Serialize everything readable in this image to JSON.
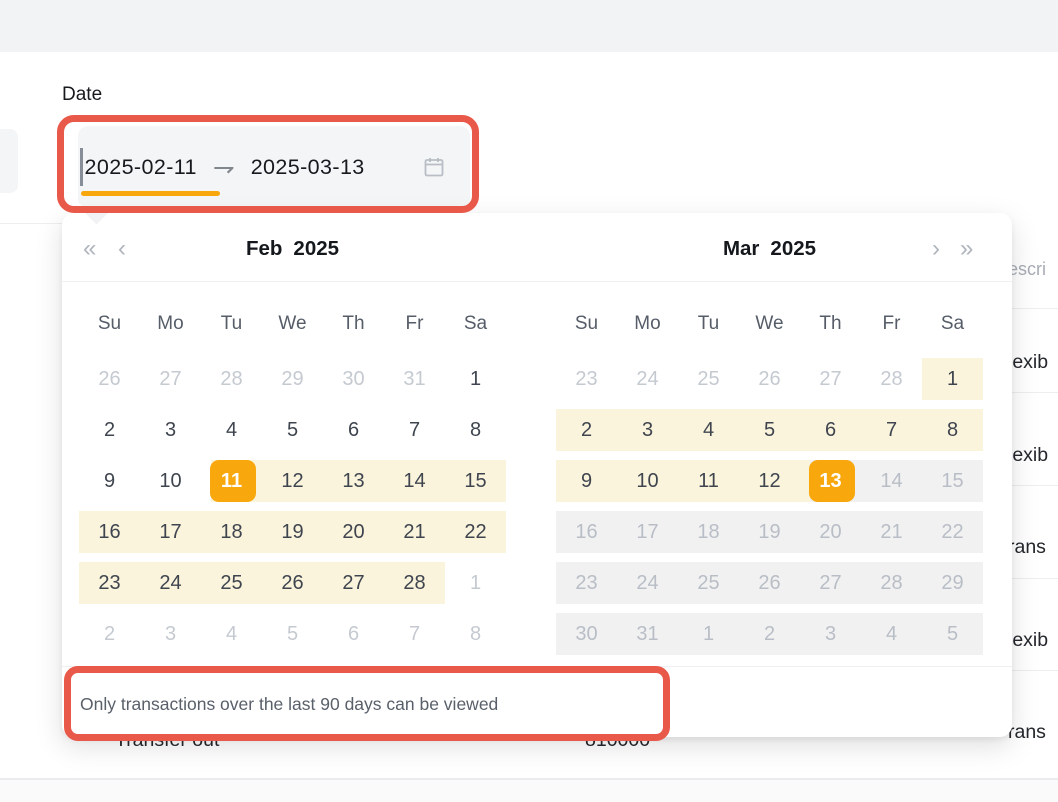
{
  "date_filter": {
    "label": "Date",
    "start_value": "2025-02-11",
    "separator_icon": "⇁",
    "end_value": "2025-03-13",
    "calendar_icon": "calendar"
  },
  "calendar": {
    "nav": {
      "prev_year": "«",
      "prev_month": "‹",
      "next_month": "›",
      "next_year": "»"
    },
    "weekdays": [
      "Su",
      "Mo",
      "Tu",
      "We",
      "Th",
      "Fr",
      "Sa"
    ],
    "panels": [
      {
        "month": "Feb",
        "year": "2025",
        "rows": [
          [
            {
              "d": "26",
              "t": "out"
            },
            {
              "d": "27",
              "t": "out"
            },
            {
              "d": "28",
              "t": "out"
            },
            {
              "d": "29",
              "t": "out"
            },
            {
              "d": "30",
              "t": "out"
            },
            {
              "d": "31",
              "t": "out"
            },
            {
              "d": "1",
              "t": "day"
            }
          ],
          [
            {
              "d": "2",
              "t": "day"
            },
            {
              "d": "3",
              "t": "day"
            },
            {
              "d": "4",
              "t": "day"
            },
            {
              "d": "5",
              "t": "day"
            },
            {
              "d": "6",
              "t": "day"
            },
            {
              "d": "7",
              "t": "day"
            },
            {
              "d": "8",
              "t": "day"
            }
          ],
          [
            {
              "d": "9",
              "t": "day"
            },
            {
              "d": "10",
              "t": "day"
            },
            {
              "d": "11",
              "t": "start"
            },
            {
              "d": "12",
              "t": "range"
            },
            {
              "d": "13",
              "t": "range"
            },
            {
              "d": "14",
              "t": "range"
            },
            {
              "d": "15",
              "t": "range"
            }
          ],
          [
            {
              "d": "16",
              "t": "range"
            },
            {
              "d": "17",
              "t": "range"
            },
            {
              "d": "18",
              "t": "range"
            },
            {
              "d": "19",
              "t": "range"
            },
            {
              "d": "20",
              "t": "range"
            },
            {
              "d": "21",
              "t": "range"
            },
            {
              "d": "22",
              "t": "range"
            }
          ],
          [
            {
              "d": "23",
              "t": "range"
            },
            {
              "d": "24",
              "t": "range"
            },
            {
              "d": "25",
              "t": "range"
            },
            {
              "d": "26",
              "t": "range"
            },
            {
              "d": "27",
              "t": "range"
            },
            {
              "d": "28",
              "t": "range"
            },
            {
              "d": "1",
              "t": "out"
            }
          ],
          [
            {
              "d": "2",
              "t": "out"
            },
            {
              "d": "3",
              "t": "out"
            },
            {
              "d": "4",
              "t": "out"
            },
            {
              "d": "5",
              "t": "out"
            },
            {
              "d": "6",
              "t": "out"
            },
            {
              "d": "7",
              "t": "out"
            },
            {
              "d": "8",
              "t": "out"
            }
          ]
        ]
      },
      {
        "month": "Mar",
        "year": "2025",
        "rows": [
          [
            {
              "d": "23",
              "t": "out"
            },
            {
              "d": "24",
              "t": "out"
            },
            {
              "d": "25",
              "t": "out"
            },
            {
              "d": "26",
              "t": "out"
            },
            {
              "d": "27",
              "t": "out"
            },
            {
              "d": "28",
              "t": "out"
            },
            {
              "d": "1",
              "t": "range"
            }
          ],
          [
            {
              "d": "2",
              "t": "range"
            },
            {
              "d": "3",
              "t": "range"
            },
            {
              "d": "4",
              "t": "range"
            },
            {
              "d": "5",
              "t": "range"
            },
            {
              "d": "6",
              "t": "range"
            },
            {
              "d": "7",
              "t": "range"
            },
            {
              "d": "8",
              "t": "range"
            }
          ],
          [
            {
              "d": "9",
              "t": "range"
            },
            {
              "d": "10",
              "t": "range"
            },
            {
              "d": "11",
              "t": "range"
            },
            {
              "d": "12",
              "t": "range"
            },
            {
              "d": "13",
              "t": "end"
            },
            {
              "d": "14",
              "t": "off"
            },
            {
              "d": "15",
              "t": "off"
            }
          ],
          [
            {
              "d": "16",
              "t": "off"
            },
            {
              "d": "17",
              "t": "off"
            },
            {
              "d": "18",
              "t": "off"
            },
            {
              "d": "19",
              "t": "off"
            },
            {
              "d": "20",
              "t": "off"
            },
            {
              "d": "21",
              "t": "off"
            },
            {
              "d": "22",
              "t": "off"
            }
          ],
          [
            {
              "d": "23",
              "t": "off"
            },
            {
              "d": "24",
              "t": "off"
            },
            {
              "d": "25",
              "t": "off"
            },
            {
              "d": "26",
              "t": "off"
            },
            {
              "d": "27",
              "t": "off"
            },
            {
              "d": "28",
              "t": "off"
            },
            {
              "d": "29",
              "t": "off"
            }
          ],
          [
            {
              "d": "30",
              "t": "off"
            },
            {
              "d": "31",
              "t": "off"
            },
            {
              "d": "1",
              "t": "off"
            },
            {
              "d": "2",
              "t": "off"
            },
            {
              "d": "3",
              "t": "off"
            },
            {
              "d": "4",
              "t": "off"
            },
            {
              "d": "5",
              "t": "off"
            }
          ]
        ]
      }
    ],
    "footer_note": "Only transactions over the last 90 days can be viewed"
  },
  "background_table": {
    "description_header_fragment": "escri",
    "row_fragments": [
      "lexib",
      "lexib",
      "rans",
      "lexib",
      "rans"
    ],
    "bottom_row_type_fragment": "Transfer out",
    "bottom_row_amount_fragment": "810000"
  },
  "colors": {
    "accent": "#F8A70D",
    "range_bg": "#FBF4DC",
    "disabled_bg": "#F1F1F2",
    "annotation_red": "#E9594A"
  }
}
